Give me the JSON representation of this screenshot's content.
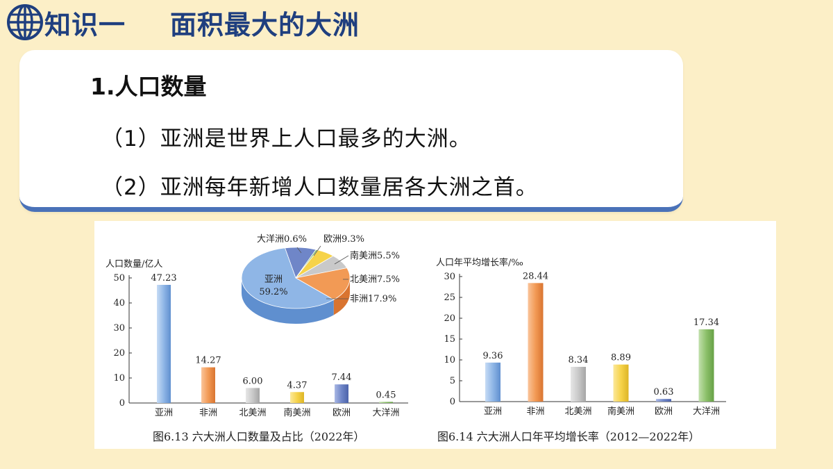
{
  "header": {
    "part": "知识一",
    "title": "面积最大的大洲"
  },
  "card": {
    "heading": "1.人口数量",
    "points": [
      "（1）亚洲是世界上人口最多的大洲。",
      "（2）亚洲每年新增人口数量居各大洲之首。"
    ]
  },
  "colors": {
    "page_bg": "#fcefc7",
    "header_text": "#1f3f7f",
    "card_underline": "#4a72b8",
    "continents": {
      "亚洲": "#8fb6e6",
      "非洲": "#f29a55",
      "北美洲": "#c9c9c9",
      "南美洲": "#f6d34a",
      "欧洲": "#6f86c8",
      "大洋洲": "#8cc06a"
    }
  },
  "chart_data": [
    {
      "type": "bar",
      "ylabel": "人口数量/亿人",
      "categories": [
        "亚洲",
        "非洲",
        "北美洲",
        "南美洲",
        "欧洲",
        "大洋洲"
      ],
      "values": [
        47.23,
        14.27,
        6.0,
        4.37,
        7.44,
        0.45
      ],
      "value_labels": [
        "47.23",
        "14.27",
        "6.00",
        "4.37",
        "7.44",
        "0.45"
      ],
      "yticks": [
        0,
        10,
        20,
        30,
        40,
        50
      ],
      "ylim": [
        0,
        50
      ],
      "caption": "图6.13 六大洲人口数量及占比（2022年）",
      "grid": false
    },
    {
      "type": "pie",
      "slices": [
        {
          "label": "亚洲",
          "value": 59.2,
          "text": "亚洲\n59.2%"
        },
        {
          "label": "非洲",
          "value": 17.9,
          "text": "非洲17.9%"
        },
        {
          "label": "北美洲",
          "value": 7.5,
          "text": "北美洲7.5%"
        },
        {
          "label": "南美洲",
          "value": 5.5,
          "text": "南美洲5.5%"
        },
        {
          "label": "欧洲",
          "value": 9.3,
          "text": "欧洲9.3%"
        },
        {
          "label": "大洋洲",
          "value": 0.6,
          "text": "大洋洲0.6%"
        }
      ]
    },
    {
      "type": "bar",
      "ylabel": "人口年平均增长率/‰",
      "categories": [
        "亚洲",
        "非洲",
        "北美洲",
        "南美洲",
        "欧洲",
        "大洋洲"
      ],
      "values": [
        9.36,
        28.44,
        8.34,
        8.89,
        0.63,
        17.34
      ],
      "value_labels": [
        "9.36",
        "28.44",
        "8.34",
        "8.89",
        "0.63",
        "17.34"
      ],
      "yticks": [
        0,
        5,
        10,
        15,
        20,
        25,
        30
      ],
      "ylim": [
        0,
        30
      ],
      "caption": "图6.14 六大洲人口年平均增长率（2012—2022年）",
      "grid": false
    }
  ]
}
